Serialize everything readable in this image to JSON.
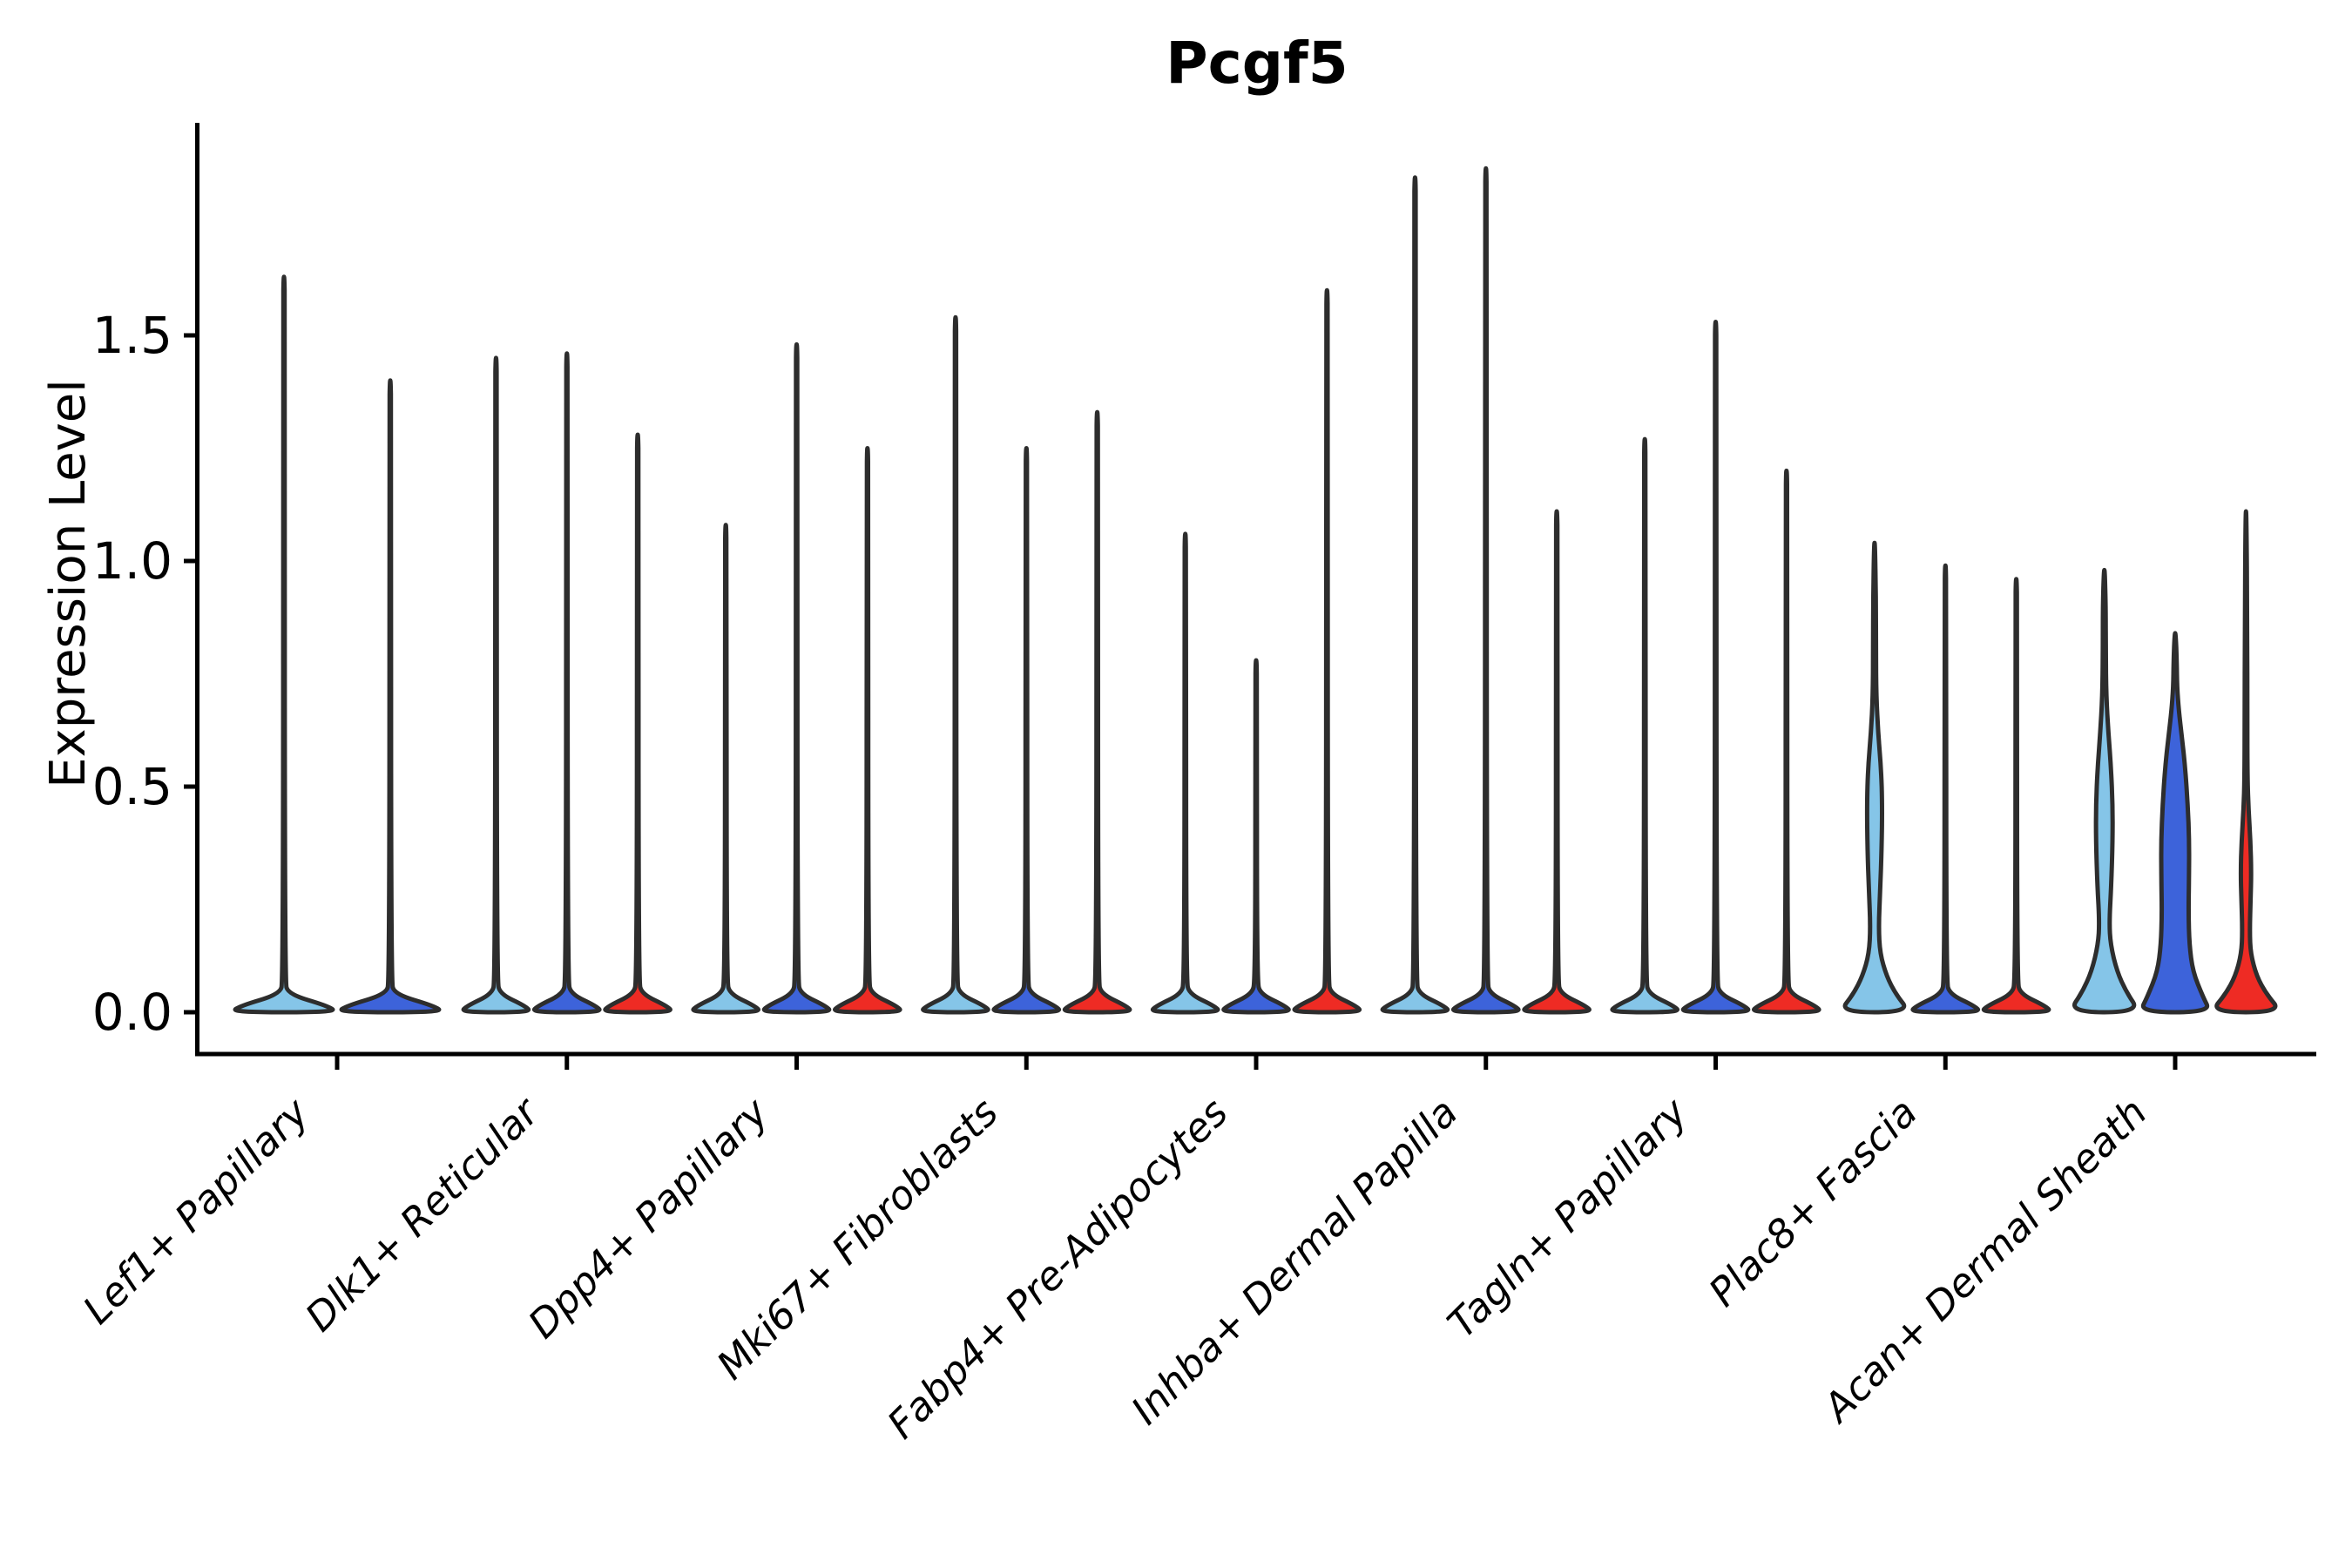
{
  "chart_data": {
    "type": "violin",
    "title": "Pcgf5",
    "ylabel": "Expression Level",
    "yticks": [
      0.0,
      0.5,
      1.0,
      1.5
    ],
    "ytick_labels": [
      "0.0",
      "0.5",
      "1.0",
      "1.5"
    ],
    "ylim": [
      0,
      1.97
    ],
    "legend_position": "none",
    "grid": false,
    "palette": {
      "light_blue": "#85C5E8",
      "royal_blue": "#3D63DA",
      "red": "#EE2B24",
      "violin_edge": "#2D2D2D",
      "axis": "#000000"
    },
    "categories": [
      "Lef1+ Papillary",
      "Dlk1+ Reticular",
      "Dpp4+ Papillary",
      "Mki67+ Fibroblasts",
      "Fabp4+ Pre-Adipocytes",
      "Inhba+ Dermal Papilla",
      "Tagln+ Papillary",
      "Plac8+ Fascia",
      "Acan+ Dermal Sheath"
    ],
    "groups": [
      {
        "category": "Lef1+ Papillary",
        "violins": [
          {
            "max": 1.63,
            "color": "light_blue",
            "shape": "spike"
          },
          {
            "max": 1.4,
            "color": "royal_blue",
            "shape": "spike"
          }
        ]
      },
      {
        "category": "Dlk1+ Reticular",
        "violins": [
          {
            "max": 1.45,
            "color": "light_blue",
            "shape": "spike"
          },
          {
            "max": 1.46,
            "color": "royal_blue",
            "shape": "spike"
          },
          {
            "max": 1.28,
            "color": "red",
            "shape": "spike"
          }
        ]
      },
      {
        "category": "Dpp4+ Papillary",
        "violins": [
          {
            "max": 1.08,
            "color": "light_blue",
            "shape": "spike"
          },
          {
            "max": 1.48,
            "color": "royal_blue",
            "shape": "spike"
          },
          {
            "max": 1.25,
            "color": "red",
            "shape": "spike"
          }
        ]
      },
      {
        "category": "Mki67+ Fibroblasts",
        "violins": [
          {
            "max": 1.54,
            "color": "light_blue",
            "shape": "spike"
          },
          {
            "max": 1.25,
            "color": "royal_blue",
            "shape": "spike"
          },
          {
            "max": 1.33,
            "color": "red",
            "shape": "spike"
          }
        ]
      },
      {
        "category": "Fabp4+ Pre-Adipocytes",
        "violins": [
          {
            "max": 1.06,
            "color": "light_blue",
            "shape": "spike"
          },
          {
            "max": 0.78,
            "color": "royal_blue",
            "shape": "spike"
          },
          {
            "max": 1.6,
            "color": "red",
            "shape": "spike"
          }
        ]
      },
      {
        "category": "Inhba+ Dermal Papilla",
        "violins": [
          {
            "max": 1.85,
            "color": "light_blue",
            "shape": "spike"
          },
          {
            "max": 1.87,
            "color": "royal_blue",
            "shape": "spike"
          },
          {
            "max": 1.11,
            "color": "red",
            "shape": "spike"
          }
        ]
      },
      {
        "category": "Tagln+ Papillary",
        "violins": [
          {
            "max": 1.27,
            "color": "light_blue",
            "shape": "spike"
          },
          {
            "max": 1.53,
            "color": "royal_blue",
            "shape": "spike"
          },
          {
            "max": 1.2,
            "color": "red",
            "shape": "spike"
          }
        ]
      },
      {
        "category": "Plac8+ Fascia",
        "violins": [
          {
            "max": 1.04,
            "color": "light_blue",
            "shape": "body",
            "profile": [
              [
                0,
                1.0
              ],
              [
                0.04,
                0.6
              ],
              [
                0.08,
                0.34
              ],
              [
                0.13,
                0.155
              ],
              [
                0.19,
                0.115
              ],
              [
                0.27,
                0.16
              ],
              [
                0.36,
                0.2
              ],
              [
                0.46,
                0.215
              ],
              [
                0.54,
                0.185
              ],
              [
                0.62,
                0.1
              ],
              [
                0.7,
                0.05
              ],
              [
                0.8,
                0.04
              ],
              [
                0.92,
                0.038
              ],
              [
                1.04,
                0.012
              ]
            ]
          },
          {
            "max": 0.99,
            "color": "royal_blue",
            "shape": "spike"
          },
          {
            "max": 0.96,
            "color": "red",
            "shape": "spike"
          }
        ]
      },
      {
        "category": "Acan+ Dermal Sheath",
        "violins": [
          {
            "max": 0.98,
            "color": "light_blue",
            "shape": "body",
            "profile": [
              [
                0,
                1.0
              ],
              [
                0.045,
                0.62
              ],
              [
                0.09,
                0.36
              ],
              [
                0.15,
                0.175
              ],
              [
                0.2,
                0.14
              ],
              [
                0.28,
                0.195
              ],
              [
                0.38,
                0.235
              ],
              [
                0.46,
                0.235
              ],
              [
                0.54,
                0.19
              ],
              [
                0.62,
                0.115
              ],
              [
                0.7,
                0.055
              ],
              [
                0.8,
                0.042
              ],
              [
                0.9,
                0.04
              ],
              [
                0.98,
                0.012
              ]
            ]
          },
          {
            "max": 0.84,
            "color": "royal_blue",
            "shape": "body",
            "profile": [
              [
                0,
                1.0
              ],
              [
                0.035,
                0.78
              ],
              [
                0.09,
                0.5
              ],
              [
                0.15,
                0.4
              ],
              [
                0.22,
                0.375
              ],
              [
                0.3,
                0.39
              ],
              [
                0.38,
                0.395
              ],
              [
                0.46,
                0.355
              ],
              [
                0.54,
                0.285
              ],
              [
                0.61,
                0.19
              ],
              [
                0.67,
                0.1
              ],
              [
                0.72,
                0.055
              ],
              [
                0.78,
                0.045
              ],
              [
                0.84,
                0.012
              ]
            ]
          },
          {
            "max": 1.11,
            "color": "red",
            "shape": "body",
            "profile": [
              [
                0,
                1.0
              ],
              [
                0.04,
                0.58
              ],
              [
                0.08,
                0.3
              ],
              [
                0.13,
                0.13
              ],
              [
                0.18,
                0.105
              ],
              [
                0.25,
                0.13
              ],
              [
                0.31,
                0.15
              ],
              [
                0.38,
                0.125
              ],
              [
                0.45,
                0.07
              ],
              [
                0.52,
                0.042
              ],
              [
                0.65,
                0.036
              ],
              [
                0.85,
                0.034
              ],
              [
                1.11,
                0.012
              ]
            ]
          }
        ]
      }
    ]
  }
}
